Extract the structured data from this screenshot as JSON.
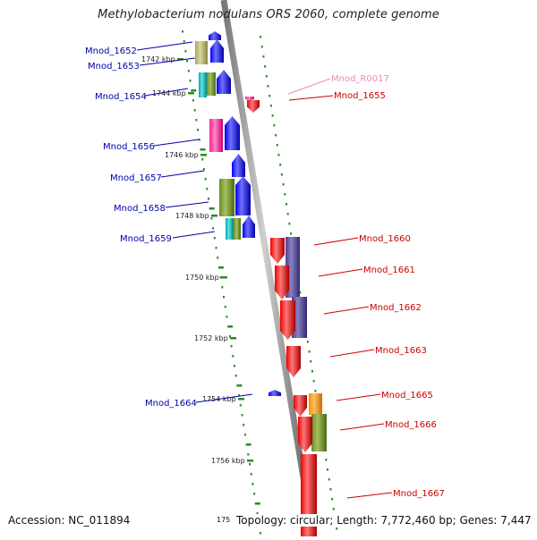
{
  "header": {
    "title": "Methylobacterium nodulans ORS 2060, complete genome"
  },
  "footer": {
    "accession": "Accession: NC_011894",
    "cut_tick": "175",
    "summary": "Topology: circular; Length: 7,772,460 bp; Genes: 7,447"
  },
  "colors": {
    "backbone": "#999999",
    "tick": "#2a8a2a",
    "minus_label": "#0000aa",
    "plus_label": "#cc0000",
    "rna_label": "#ee88bb"
  },
  "scale": {
    "ticks": [
      "1742 kbp",
      "1744 kbp",
      "1746 kbp",
      "1748 kbp",
      "1750 kbp",
      "1752 kbp",
      "1754 kbp",
      "1756 kbp"
    ]
  },
  "genes_minus": [
    "Mnod_1652",
    "Mnod_1653",
    "Mnod_1654",
    "Mnod_1656",
    "Mnod_1657",
    "Mnod_1658",
    "Mnod_1659",
    "Mnod_1664"
  ],
  "genes_plus": [
    "Mnod_R0017",
    "Mnod_1655",
    "Mnod_1660",
    "Mnod_1661",
    "Mnod_1662",
    "Mnod_1663",
    "Mnod_1665",
    "Mnod_1666",
    "Mnod_1667"
  ]
}
